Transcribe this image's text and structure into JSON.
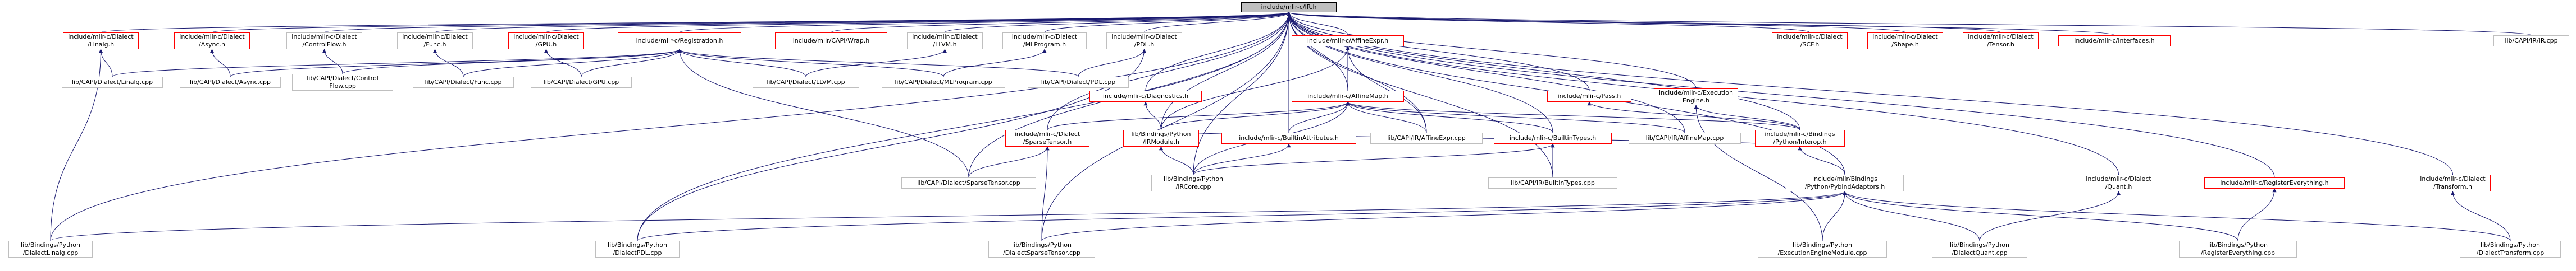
{
  "colors": {
    "edge": "#191970",
    "red_border": "#ff0000",
    "gray_border": "#bfbfbf",
    "root_fill": "#bfbfbf"
  },
  "nodes": {
    "root": {
      "lines": [
        "include/mlir-c/IR.h"
      ],
      "style": "root"
    },
    "linalg_h": {
      "lines": [
        "include/mlir-c/Dialect",
        "/Linalg.h"
      ],
      "style": "red"
    },
    "async_h": {
      "lines": [
        "include/mlir-c/Dialect",
        "/Async.h"
      ],
      "style": "red"
    },
    "controlflow_h": {
      "lines": [
        "include/mlir-c/Dialect",
        "/ControlFlow.h"
      ],
      "style": "gray"
    },
    "func_h": {
      "lines": [
        "include/mlir-c/Dialect",
        "/Func.h"
      ],
      "style": "gray"
    },
    "gpu_h": {
      "lines": [
        "include/mlir-c/Dialect",
        "/GPU.h"
      ],
      "style": "red"
    },
    "registration_h": {
      "lines": [
        "include/mlir-c/Registration.h"
      ],
      "style": "red"
    },
    "irwrap_h": {
      "lines": [
        "include/mlir/CAPI/Wrap.h"
      ],
      "style": "red"
    },
    "llvm_h": {
      "lines": [
        "include/mlir-c/Dialect",
        "/LLVM.h"
      ],
      "style": "gray"
    },
    "mlprogram_h": {
      "lines": [
        "include/mlir-c/Dialect",
        "/MLProgram.h"
      ],
      "style": "gray"
    },
    "pdl_h": {
      "lines": [
        "include/mlir-c/Dialect",
        "/PDL.h"
      ],
      "style": "gray"
    },
    "affineexpr_h": {
      "lines": [
        "include/mlir-c/AffineExpr.h"
      ],
      "style": "red"
    },
    "scf_h": {
      "lines": [
        "include/mlir-c/Dialect",
        "/SCF.h"
      ],
      "style": "red"
    },
    "shape_h": {
      "lines": [
        "include/mlir-c/Dialect",
        "/Shape.h"
      ],
      "style": "red"
    },
    "tensor_h": {
      "lines": [
        "include/mlir-c/Dialect",
        "/Tensor.h"
      ],
      "style": "red"
    },
    "interfaces_h": {
      "lines": [
        "include/mlir-c/Interfaces.h"
      ],
      "style": "red"
    },
    "capiir_cpp": {
      "lines": [
        "lib/CAPI/IR/IR.cpp"
      ],
      "style": "gray"
    },
    "diagnostics_h": {
      "lines": [
        "include/mlir-c/Diagnostics.h"
      ],
      "style": "red"
    },
    "affinemap_h": {
      "lines": [
        "include/mlir-c/AffineMap.h"
      ],
      "style": "red"
    },
    "pass_h": {
      "lines": [
        "include/mlir-c/Pass.h"
      ],
      "style": "red"
    },
    "executionengine_h": {
      "lines": [
        "include/mlir-c/Execution",
        "Engine.h"
      ],
      "style": "red"
    },
    "linalg_cpp": {
      "lines": [
        "lib/CAPI/Dialect/Linalg.cpp"
      ],
      "style": "gray"
    },
    "async_cpp": {
      "lines": [
        "lib/CAPI/Dialect/Async.cpp"
      ],
      "style": "gray"
    },
    "controlflow_cpp": {
      "lines": [
        "lib/CAPI/Dialect/Control",
        "Flow.cpp"
      ],
      "style": "gray"
    },
    "func_cpp": {
      "lines": [
        "lib/CAPI/Dialect/Func.cpp"
      ],
      "style": "gray"
    },
    "gpu_cpp": {
      "lines": [
        "lib/CAPI/Dialect/GPU.cpp"
      ],
      "style": "gray"
    },
    "llvm_cpp": {
      "lines": [
        "lib/CAPI/Dialect/LLVM.cpp"
      ],
      "style": "gray"
    },
    "mlprogram_cpp": {
      "lines": [
        "lib/CAPI/Dialect/MLProgram.cpp"
      ],
      "style": "gray"
    },
    "pdl_cpp": {
      "lines": [
        "lib/CAPI/Dialect/PDL.cpp"
      ],
      "style": "gray"
    },
    "sparsetensor_h": {
      "lines": [
        "include/mlir-c/Dialect",
        "/SparseTensor.h"
      ],
      "style": "red"
    },
    "irmodule_h": {
      "lines": [
        "lib/Bindings/Python",
        "/IRModule.h"
      ],
      "style": "red"
    },
    "builtinattributes_h": {
      "lines": [
        "include/mlir-c/BuiltinAttributes.h"
      ],
      "style": "red"
    },
    "affineexpr_cpp": {
      "lines": [
        "lib/CAPI/IR/AffineExpr.cpp"
      ],
      "style": "gray"
    },
    "builtintypes_h": {
      "lines": [
        "include/mlir-c/BuiltinTypes.h"
      ],
      "style": "red"
    },
    "affinemap_cpp": {
      "lines": [
        "lib/CAPI/IR/AffineMap.cpp"
      ],
      "style": "gray"
    },
    "interop_h": {
      "lines": [
        "include/mlir-c/Bindings",
        "/Python/Interop.h"
      ],
      "style": "red"
    },
    "sparsetensor_cpp": {
      "lines": [
        "lib/CAPI/Dialect/SparseTensor.cpp"
      ],
      "style": "gray"
    },
    "ircore_cpp": {
      "lines": [
        "lib/Bindings/Python",
        "/IRCore.cpp"
      ],
      "style": "gray"
    },
    "builtintypes_cpp": {
      "lines": [
        "lib/CAPI/IR/BuiltinTypes.cpp"
      ],
      "style": "gray"
    },
    "pybind_h": {
      "lines": [
        "include/mlir/Bindings",
        "/Python/PybindAdaptors.h"
      ],
      "style": "gray"
    },
    "quant_h": {
      "lines": [
        "include/mlir-c/Dialect",
        "/Quant.h"
      ],
      "style": "red"
    },
    "registereverything_h": {
      "lines": [
        "include/mlir-c/RegisterEverything.h"
      ],
      "style": "red"
    },
    "transform_h": {
      "lines": [
        "include/mlir-c/Dialect",
        "/Transform.h"
      ],
      "style": "red"
    },
    "dialectlinalg_cpp": {
      "lines": [
        "lib/Bindings/Python",
        "/DialectLinalg.cpp"
      ],
      "style": "gray"
    },
    "dialectpdl_cpp": {
      "lines": [
        "lib/Bindings/Python",
        "/DialectPDL.cpp"
      ],
      "style": "gray"
    },
    "dialectsparsetensor_cpp": {
      "lines": [
        "lib/Bindings/Python",
        "/DialectSparseTensor.cpp"
      ],
      "style": "gray"
    },
    "execmodule_cpp": {
      "lines": [
        "lib/Bindings/Python",
        "/ExecutionEngineModule.cpp"
      ],
      "style": "gray"
    },
    "dialectquant_cpp": {
      "lines": [
        "lib/Bindings/Python",
        "/DialectQuant.cpp"
      ],
      "style": "gray"
    },
    "registereverything_cpp": {
      "lines": [
        "lib/Bindings/Python",
        "/RegisterEverything.cpp"
      ],
      "style": "gray"
    },
    "dialecttransform_cpp": {
      "lines": [
        "lib/Bindings/Python",
        "/DialectTransform.cpp"
      ],
      "style": "gray"
    }
  }
}
